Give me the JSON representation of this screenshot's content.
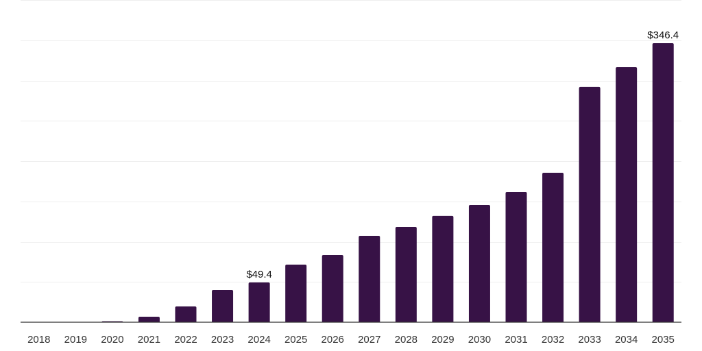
{
  "chart_data": {
    "type": "bar",
    "title": "",
    "xlabel": "",
    "ylabel": "",
    "ylim": [
      0,
      400
    ],
    "grid": true,
    "y_gridlines": [
      0,
      50,
      100,
      150,
      200,
      250,
      300,
      350,
      400
    ],
    "bar_color": "#371246",
    "categories": [
      "2018",
      "2019",
      "2020",
      "2021",
      "2022",
      "2023",
      "2024",
      "2025",
      "2026",
      "2027",
      "2028",
      "2029",
      "2030",
      "2031",
      "2032",
      "2033",
      "2034",
      "2035"
    ],
    "values": [
      0.1,
      0.3,
      1.2,
      6.8,
      19.6,
      40.0,
      49.4,
      71.5,
      83.4,
      107.2,
      118.3,
      132.0,
      145.5,
      161.7,
      185.5,
      292.0,
      316.6,
      346.4
    ],
    "data_labels": [
      {
        "category": "2024",
        "text": "$49.4"
      },
      {
        "category": "2035",
        "text": "$346.4"
      }
    ]
  }
}
